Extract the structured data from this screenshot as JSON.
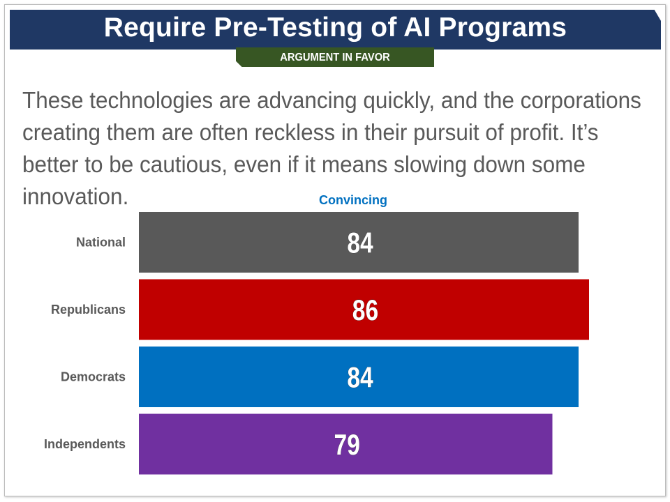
{
  "page": {
    "title": "Require Pre-Testing of AI Programs",
    "subtitle": "ARGUMENT IN FAVOR",
    "body": "These technologies are advancing quickly, and the corporations creating them are often reckless in their pursuit of profit. It’s better to be cautious, even if it means slowing down some innovation."
  },
  "colors": {
    "title_banner": "#1f3864",
    "subtitle_banner": "#375623",
    "column_header": "#0070c0"
  },
  "chart_data": {
    "type": "bar",
    "orientation": "horizontal",
    "column_header": "Convincing",
    "categories": [
      "National",
      "Republicans",
      "Democrats",
      "Independents"
    ],
    "values": [
      84,
      86,
      84,
      79
    ],
    "colors": [
      "#595959",
      "#c00000",
      "#0070c0",
      "#7030a0"
    ],
    "xlim": [
      0,
      100
    ],
    "grid": false,
    "legend": "none"
  }
}
